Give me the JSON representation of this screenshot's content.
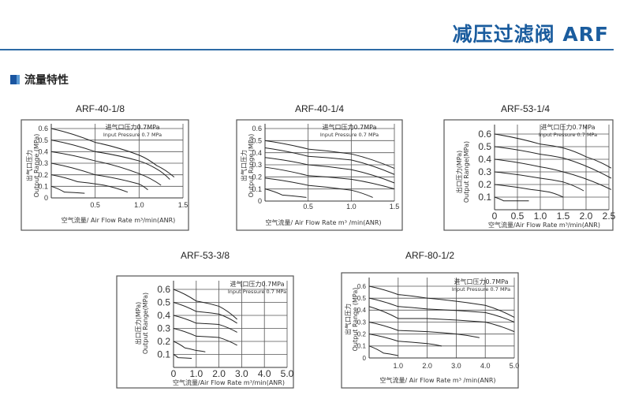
{
  "header": {
    "title": "减压过滤阀 ARF",
    "accent": "#1a5c9e"
  },
  "section": {
    "title": "流量特性"
  },
  "chart_data": [
    {
      "type": "line",
      "title": "ARF-40-1/8",
      "annotation": [
        "进气口压力0.7MPa",
        "Input Pressure 0.7 MPa"
      ],
      "ylabel": [
        "出气口压力",
        "Output Range (MPa)"
      ],
      "xlabel": "空气流量/ Air Flow Rate m³/min(ANR)",
      "xticks": [
        "0.5",
        "1.0",
        "1.5"
      ],
      "xtick_values": [
        0.5,
        1.0,
        1.5
      ],
      "yticks": [
        "0",
        "0.1",
        "0.2",
        "0.3",
        "0.4",
        "0.5",
        "0.6"
      ],
      "ytick_values": [
        0,
        0.1,
        0.2,
        0.3,
        0.4,
        0.5,
        0.6
      ],
      "xlim": [
        0,
        1.5
      ],
      "ylim": [
        0,
        0.6
      ],
      "grid": true,
      "series": [
        {
          "x": [
            0,
            0.5,
            1.0,
            1.2,
            1.4
          ],
          "y": [
            0.6,
            0.48,
            0.37,
            0.28,
            0.18
          ]
        },
        {
          "x": [
            0,
            0.5,
            1.0,
            1.2,
            1.35
          ],
          "y": [
            0.5,
            0.4,
            0.32,
            0.25,
            0.16
          ]
        },
        {
          "x": [
            0,
            0.5,
            1.0,
            1.25
          ],
          "y": [
            0.4,
            0.32,
            0.21,
            0.11
          ]
        },
        {
          "x": [
            0,
            0.5,
            1.0,
            1.1
          ],
          "y": [
            0.3,
            0.2,
            0.12,
            0.07
          ]
        },
        {
          "x": [
            0,
            0.3,
            0.6,
            0.87
          ],
          "y": [
            0.2,
            0.14,
            0.11,
            0.05
          ]
        },
        {
          "x": [
            0,
            0.15,
            0.38
          ],
          "y": [
            0.1,
            0.05,
            0.04
          ]
        }
      ]
    },
    {
      "type": "line",
      "title": "ARF-40-1/4",
      "annotation": [
        "进气口压力0.7MPa",
        "Input Pressure 0.7 MPa"
      ],
      "ylabel": [
        "出气口压力",
        "Output Range (MPa)"
      ],
      "xlabel": "空气流量/ Air Flow Rate m³ /min(ANR)",
      "xticks": [
        "0.5",
        "1.0",
        "1.5"
      ],
      "xtick_values": [
        0.5,
        1.0,
        1.5
      ],
      "yticks": [
        "0",
        "0.1",
        "0.2",
        "0.3",
        "0.4",
        "0.5",
        "0.6"
      ],
      "ytick_values": [
        0,
        0.1,
        0.2,
        0.3,
        0.4,
        0.5,
        0.6
      ],
      "xlim": [
        0,
        1.5
      ],
      "ylim": [
        0,
        0.6
      ],
      "grid": true,
      "series": [
        {
          "x": [
            0,
            0.5,
            1.0,
            1.5
          ],
          "y": [
            0.5,
            0.43,
            0.39,
            0.27
          ]
        },
        {
          "x": [
            0,
            0.5,
            1.0,
            1.5
          ],
          "y": [
            0.44,
            0.37,
            0.34,
            0.22
          ]
        },
        {
          "x": [
            0,
            0.5,
            1.0,
            1.5
          ],
          "y": [
            0.36,
            0.3,
            0.26,
            0.15
          ]
        },
        {
          "x": [
            0,
            0.5,
            1.0,
            1.5
          ],
          "y": [
            0.28,
            0.21,
            0.18,
            0.1
          ]
        },
        {
          "x": [
            0,
            0.5,
            1.0,
            1.25
          ],
          "y": [
            0.19,
            0.13,
            0.09,
            0.03
          ]
        },
        {
          "x": [
            0,
            0.2,
            0.48
          ],
          "y": [
            0.1,
            0.05,
            0.03
          ]
        }
      ]
    },
    {
      "type": "line",
      "title": "ARF-53-1/4",
      "annotation": [
        "进气口压力0.7MPa",
        "Input Pressure 0.7 MPa"
      ],
      "ylabel": [
        "出口压力(MPa)",
        "Output Range(MPa)"
      ],
      "xlabel": "空气流量/Air Flow Rate m³/min(ANR)",
      "xticks": [
        "0",
        "0.5",
        "1.0",
        "1.5",
        "2.0",
        "2.5"
      ],
      "xtick_values": [
        0,
        0.5,
        1.0,
        1.5,
        2.0,
        2.5
      ],
      "yticks": [
        "0.1",
        "0.2",
        "0.3",
        "0.4",
        "0.5",
        "0.6"
      ],
      "ytick_values": [
        0.1,
        0.2,
        0.3,
        0.4,
        0.5,
        0.6
      ],
      "xlim": [
        0,
        2.5
      ],
      "ylim": [
        0,
        0.6
      ],
      "grid": true,
      "series": [
        {
          "x": [
            0,
            1,
            1.5,
            2,
            2.55
          ],
          "y": [
            0.6,
            0.52,
            0.49,
            0.42,
            0.33
          ]
        },
        {
          "x": [
            0,
            1,
            1.5,
            2.55
          ],
          "y": [
            0.5,
            0.44,
            0.41,
            0.25
          ]
        },
        {
          "x": [
            0,
            1,
            1.5,
            2.55
          ],
          "y": [
            0.4,
            0.34,
            0.3,
            0.16
          ]
        },
        {
          "x": [
            0,
            1,
            1.5,
            1.95
          ],
          "y": [
            0.3,
            0.25,
            0.22,
            0.15
          ]
        },
        {
          "x": [
            0,
            0.8,
            1.2,
            1.5
          ],
          "y": [
            0.2,
            0.16,
            0.14,
            0.1
          ]
        },
        {
          "x": [
            0,
            0.2,
            0.75
          ],
          "y": [
            0.1,
            0.07,
            0.07
          ]
        }
      ]
    },
    {
      "type": "line",
      "title": "ARF-53-3/8",
      "annotation": [
        "进气口压力0.7MPa",
        "Input Pressure 0.7 MPa"
      ],
      "ylabel": [
        "出口压力(MPa)",
        "Output Range(MPa)"
      ],
      "xlabel": "空气流量/Air Flow Rate m³/min(ANR)",
      "xticks": [
        "0",
        "1.0",
        "2.0",
        "3.0",
        "4.0",
        "5.0"
      ],
      "xtick_values": [
        0,
        1,
        2,
        3,
        4,
        5
      ],
      "yticks": [
        "0.1",
        "0.2",
        "0.3",
        "0.4",
        "0.5",
        "0.6"
      ],
      "ytick_values": [
        0.1,
        0.2,
        0.3,
        0.4,
        0.5,
        0.6
      ],
      "xlim": [
        0,
        5
      ],
      "ylim": [
        0,
        0.6
      ],
      "grid": true,
      "series": [
        {
          "x": [
            0,
            1,
            2,
            2.8
          ],
          "y": [
            0.6,
            0.51,
            0.47,
            0.37
          ]
        },
        {
          "x": [
            0,
            1,
            2,
            2.8
          ],
          "y": [
            0.5,
            0.43,
            0.41,
            0.34
          ]
        },
        {
          "x": [
            0,
            1,
            2,
            2.8
          ],
          "y": [
            0.4,
            0.34,
            0.33,
            0.27
          ]
        },
        {
          "x": [
            0,
            1,
            2,
            2.8
          ],
          "y": [
            0.3,
            0.24,
            0.23,
            0.17
          ]
        },
        {
          "x": [
            0,
            0.5,
            1,
            1.4
          ],
          "y": [
            0.2,
            0.15,
            0.13,
            0.12
          ]
        },
        {
          "x": [
            0,
            0.2,
            0.8
          ],
          "y": [
            0.1,
            0.075,
            0.07
          ]
        }
      ]
    },
    {
      "type": "line",
      "title": "ARF-80-1/2",
      "annotation": [
        "进气口压力0.7MPa",
        "Input Pressure 0.7 MPa"
      ],
      "ylabel": [
        "出气口压力",
        "Output Range (MPa)"
      ],
      "xlabel": "空气流量/ Air Flow Rate m³ /min(ANR)",
      "xticks": [
        "1.0",
        "2.0",
        "3.0",
        "4.0",
        "5.0"
      ],
      "xtick_values": [
        1,
        2,
        3,
        4,
        5
      ],
      "yticks": [
        "0",
        "0.1",
        "0.2",
        "0.3",
        "0.4",
        "0.5",
        "0.6"
      ],
      "ytick_values": [
        0,
        0.1,
        0.2,
        0.3,
        0.4,
        0.5,
        0.6
      ],
      "xlim": [
        0,
        5
      ],
      "ylim": [
        0,
        0.6
      ],
      "grid": true,
      "series": [
        {
          "x": [
            0,
            1,
            2,
            4,
            5
          ],
          "y": [
            0.6,
            0.53,
            0.5,
            0.44,
            0.34
          ]
        },
        {
          "x": [
            0,
            1,
            2,
            4,
            5
          ],
          "y": [
            0.5,
            0.43,
            0.41,
            0.38,
            0.3
          ]
        },
        {
          "x": [
            0,
            1,
            2,
            4,
            5
          ],
          "y": [
            0.43,
            0.33,
            0.33,
            0.3,
            0.22
          ]
        },
        {
          "x": [
            0,
            1,
            2,
            3,
            3.8
          ],
          "y": [
            0.3,
            0.23,
            0.22,
            0.2,
            0.17
          ]
        },
        {
          "x": [
            0,
            1,
            2,
            2.5
          ],
          "y": [
            0.2,
            0.14,
            0.12,
            0.1
          ]
        },
        {
          "x": [
            0,
            0.5,
            1
          ],
          "y": [
            0.1,
            0.04,
            0.02
          ]
        }
      ]
    }
  ]
}
